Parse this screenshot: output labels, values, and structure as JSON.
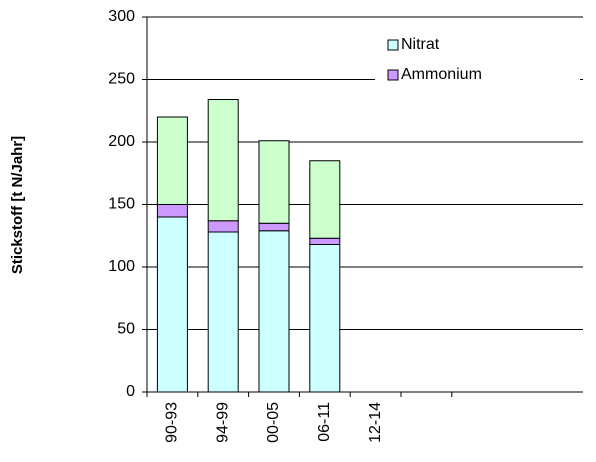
{
  "chart_data": {
    "type": "stacked-bar",
    "y_label": "Stickstoff [t N/Jahr]",
    "categories": [
      "90-93",
      "94-99",
      "00-05",
      "06-11",
      "12-14"
    ],
    "series": [
      {
        "name": "Nitrat",
        "color": "#ccffff",
        "values": [
          140,
          128,
          129,
          118,
          null
        ]
      },
      {
        "name": "Ammonium",
        "color": "#cc99ff",
        "values": [
          10,
          9,
          6,
          5,
          null
        ]
      },
      {
        "color": "#ccffcc",
        "values": [
          70,
          97,
          66,
          62,
          null
        ]
      }
    ],
    "legend_series": [
      0,
      1
    ],
    "ylim": [
      0,
      300
    ],
    "yticks": [
      0,
      50,
      100,
      150,
      200,
      250,
      300
    ],
    "grid": true
  }
}
